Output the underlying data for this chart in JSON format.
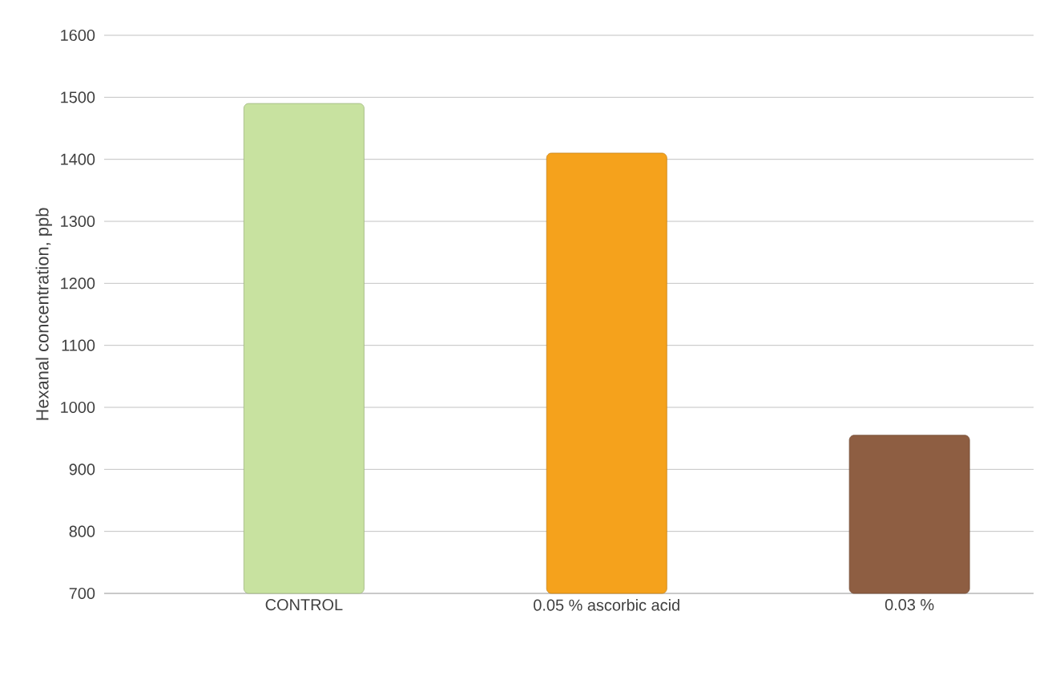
{
  "chart_data": {
    "type": "bar",
    "ylabel": "Hexanal concentration, ppb",
    "categories": [
      "CONTROL",
      "0.05 % ascorbic acid",
      "0.03 %"
    ],
    "values": [
      1490,
      1410,
      955
    ],
    "colors": [
      "#c8e2a0",
      "#f5a21c",
      "#8e5e42"
    ],
    "ylim": [
      700,
      1600
    ],
    "yticks": [
      700,
      800,
      900,
      1000,
      1100,
      1200,
      1300,
      1400,
      1500,
      1600
    ],
    "grid": "y"
  }
}
